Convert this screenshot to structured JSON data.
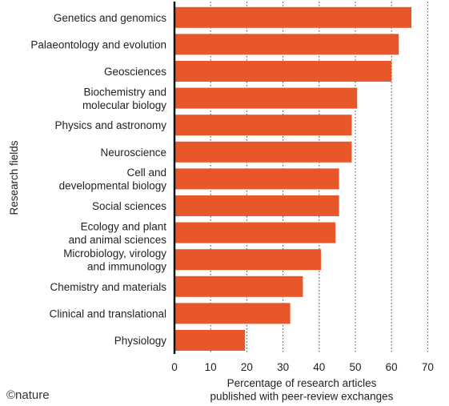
{
  "chart_data": {
    "type": "bar",
    "orientation": "horizontal",
    "categories": [
      [
        "Genetics and genomics"
      ],
      [
        "Palaeontology and evolution"
      ],
      [
        "Geosciences"
      ],
      [
        "Biochemistry and",
        "molecular biology"
      ],
      [
        "Physics and astronomy"
      ],
      [
        "Neuroscience"
      ],
      [
        "Cell and",
        "developmental biology"
      ],
      [
        "Social sciences"
      ],
      [
        "Ecology and plant",
        "and animal sciences"
      ],
      [
        "Microbiology, virology",
        "and immunology"
      ],
      [
        "Chemistry and materials"
      ],
      [
        "Clinical and translational"
      ],
      [
        "Physiology"
      ]
    ],
    "values": [
      65.5,
      62,
      60,
      50.5,
      49,
      49,
      45.5,
      45.5,
      44.5,
      40.5,
      35.5,
      32,
      19.5
    ],
    "xlabel": [
      "Percentage of research articles",
      "published with peer-review exchanges"
    ],
    "ylabel": "Research fields",
    "xlim": [
      0,
      70
    ],
    "xticks": [
      0,
      10,
      20,
      30,
      40,
      50,
      60,
      70
    ],
    "grid": "vertical dotted",
    "colors": {
      "bar": "#E8572A",
      "axis": "#111111",
      "grid": "#444444"
    }
  },
  "credit": "©nature"
}
